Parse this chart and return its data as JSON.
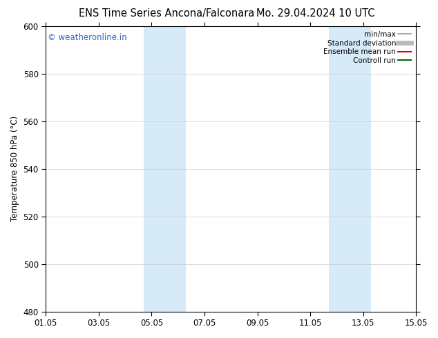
{
  "title_left": "ENS Time Series Ancona/Falconara",
  "title_right": "Mo. 29.04.2024 10 UTC",
  "ylabel": "Temperature 850 hPa (°C)",
  "xlim_labels": [
    "01.05",
    "03.05",
    "05.05",
    "07.05",
    "09.05",
    "11.05",
    "13.05",
    "15.05"
  ],
  "xlim": [
    0,
    14
  ],
  "ylim": [
    480,
    600
  ],
  "yticks": [
    480,
    500,
    520,
    540,
    560,
    580,
    600
  ],
  "xticks": [
    0,
    2,
    4,
    6,
    8,
    10,
    12,
    14
  ],
  "shaded_bands": [
    {
      "x_start": 3.7,
      "x_end": 5.3,
      "color": "#d6eaf8"
    },
    {
      "x_start": 10.7,
      "x_end": 12.3,
      "color": "#d6eaf8"
    }
  ],
  "watermark_text": "© weatheronline.in",
  "watermark_color": "#3366cc",
  "legend_entries": [
    {
      "label": "min/max",
      "color": "#999999",
      "lw": 1.2
    },
    {
      "label": "Standard deviation",
      "color": "#bbbbbb",
      "lw": 5
    },
    {
      "label": "Ensemble mean run",
      "color": "#dd0000",
      "lw": 1.5
    },
    {
      "label": "Controll run",
      "color": "#006600",
      "lw": 1.5
    }
  ],
  "background_color": "#ffffff",
  "grid_color": "#cccccc",
  "title_fontsize": 10.5,
  "tick_fontsize": 8.5,
  "ylabel_fontsize": 8.5,
  "watermark_fontsize": 8.5,
  "legend_fontsize": 7.5
}
